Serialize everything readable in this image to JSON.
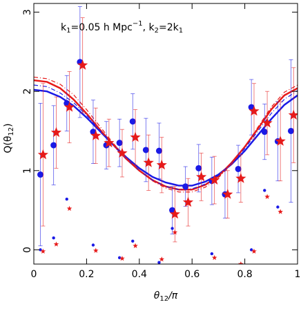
{
  "chart_data": {
    "type": "errorbar",
    "annotation_parts": [
      "k",
      "1",
      "=0.05 h Mpc",
      "−1",
      ", k",
      "2",
      "=2k",
      "1"
    ],
    "x_label_parts": [
      "θ",
      "12",
      "/π"
    ],
    "y_label_parts": [
      "Q(θ",
      "12",
      ")"
    ],
    "xlim": [
      0,
      1
    ],
    "ylim": [
      -0.18,
      3.11
    ],
    "xticks": [
      0,
      0.2,
      0.4,
      0.6,
      0.8,
      1
    ],
    "yticks": [
      0,
      1,
      2,
      3
    ],
    "series": [
      {
        "color": "#1a1ae6",
        "marker": "circle",
        "size": "large",
        "x": [
          0.025,
          0.075,
          0.125,
          0.175,
          0.225,
          0.275,
          0.325,
          0.375,
          0.425,
          0.475,
          0.525,
          0.575,
          0.625,
          0.675,
          0.725,
          0.775,
          0.825,
          0.875,
          0.925,
          0.975
        ],
        "values": [
          0.95,
          1.32,
          1.85,
          2.37,
          1.49,
          1.32,
          1.35,
          1.62,
          1.26,
          1.25,
          0.5,
          0.8,
          1.03,
          0.87,
          0.7,
          1.02,
          1.8,
          1.49,
          1.37,
          1.5
        ],
        "errors": [
          0.9,
          0.5,
          0.35,
          0.7,
          0.4,
          0.3,
          0.3,
          0.35,
          0.4,
          0.35,
          0.3,
          0.25,
          0.3,
          0.3,
          0.3,
          0.3,
          0.35,
          0.35,
          0.5,
          0.9
        ]
      },
      {
        "color": "#e61a1a",
        "marker": "star",
        "size": "large",
        "x": [
          0.035,
          0.085,
          0.135,
          0.185,
          0.235,
          0.285,
          0.335,
          0.385,
          0.435,
          0.485,
          0.535,
          0.585,
          0.635,
          0.685,
          0.735,
          0.785,
          0.835,
          0.885,
          0.935,
          0.985
        ],
        "values": [
          1.2,
          1.48,
          1.8,
          2.33,
          1.44,
          1.35,
          1.22,
          1.42,
          1.1,
          1.07,
          0.45,
          0.6,
          0.92,
          0.88,
          0.7,
          0.9,
          1.75,
          1.6,
          1.37,
          1.7
        ],
        "errors": [
          0.9,
          0.45,
          0.45,
          0.6,
          0.35,
          0.3,
          0.3,
          0.35,
          0.35,
          0.35,
          0.35,
          0.3,
          0.3,
          0.3,
          0.3,
          0.3,
          0.35,
          0.4,
          0.5,
          0.6
        ]
      },
      {
        "color": "#1a1ae6",
        "marker": "circle",
        "size": "small",
        "x": [
          0.025,
          0.075,
          0.125,
          0.225,
          0.325,
          0.375,
          0.475,
          0.525,
          0.675,
          0.825,
          0.875,
          0.925
        ],
        "values": [
          0.0,
          0.15,
          0.64,
          0.06,
          -0.1,
          0.11,
          -0.16,
          0.27,
          -0.05,
          0.0,
          0.75,
          0.54
        ]
      },
      {
        "color": "#e61a1a",
        "marker": "star",
        "size": "small",
        "x": [
          0.035,
          0.085,
          0.135,
          0.235,
          0.335,
          0.385,
          0.485,
          0.535,
          0.685,
          0.785,
          0.835,
          0.885,
          0.935
        ],
        "values": [
          -0.02,
          0.07,
          0.52,
          -0.01,
          -0.11,
          0.05,
          -0.12,
          0.22,
          -0.1,
          -0.18,
          -0.02,
          0.67,
          0.48
        ]
      }
    ],
    "lines": [
      {
        "color": "#1a1ae6",
        "style": "solid",
        "x": [
          0,
          0.05,
          0.1,
          0.15,
          0.2,
          0.25,
          0.3,
          0.35,
          0.4,
          0.45,
          0.5,
          0.55,
          0.6,
          0.65,
          0.7,
          0.75,
          0.8,
          0.85,
          0.9,
          0.95,
          1
        ],
        "values": [
          2.02,
          2.0,
          1.93,
          1.82,
          1.67,
          1.5,
          1.33,
          1.17,
          1.03,
          0.92,
          0.85,
          0.81,
          0.81,
          0.86,
          0.95,
          1.08,
          1.25,
          1.45,
          1.65,
          1.83,
          1.95
        ]
      },
      {
        "color": "#e61a1a",
        "style": "solid",
        "x": [
          0,
          0.05,
          0.1,
          0.15,
          0.2,
          0.25,
          0.3,
          0.35,
          0.4,
          0.45,
          0.5,
          0.55,
          0.6,
          0.65,
          0.7,
          0.75,
          0.8,
          0.85,
          0.9,
          0.95,
          1
        ],
        "values": [
          2.14,
          2.12,
          2.04,
          1.9,
          1.72,
          1.52,
          1.33,
          1.15,
          1.0,
          0.88,
          0.8,
          0.76,
          0.76,
          0.82,
          0.93,
          1.1,
          1.3,
          1.53,
          1.77,
          1.95,
          2.04
        ]
      },
      {
        "color": "#1a1ae6",
        "style": "dashed",
        "x": [
          0,
          0.05,
          0.1,
          0.15,
          0.2,
          0.25,
          0.3,
          0.35,
          0.4,
          0.45,
          0.5,
          0.55,
          0.6,
          0.65,
          0.7,
          0.75,
          0.8,
          0.85,
          0.9,
          0.95,
          1
        ],
        "values": [
          2.08,
          2.06,
          1.98,
          1.86,
          1.7,
          1.51,
          1.32,
          1.15,
          1.0,
          0.88,
          0.8,
          0.76,
          0.77,
          0.83,
          0.94,
          1.09,
          1.28,
          1.5,
          1.72,
          1.9,
          2.01
        ]
      },
      {
        "color": "#e61a1a",
        "style": "dashed",
        "x": [
          0,
          0.05,
          0.1,
          0.15,
          0.2,
          0.25,
          0.3,
          0.35,
          0.4,
          0.45,
          0.5,
          0.55,
          0.6,
          0.65,
          0.7,
          0.75,
          0.8,
          0.85,
          0.9,
          0.95,
          1
        ],
        "values": [
          2.18,
          2.16,
          2.09,
          1.96,
          1.77,
          1.56,
          1.35,
          1.16,
          1.0,
          0.87,
          0.78,
          0.73,
          0.73,
          0.79,
          0.91,
          1.08,
          1.3,
          1.55,
          1.8,
          1.99,
          2.08
        ]
      }
    ]
  }
}
